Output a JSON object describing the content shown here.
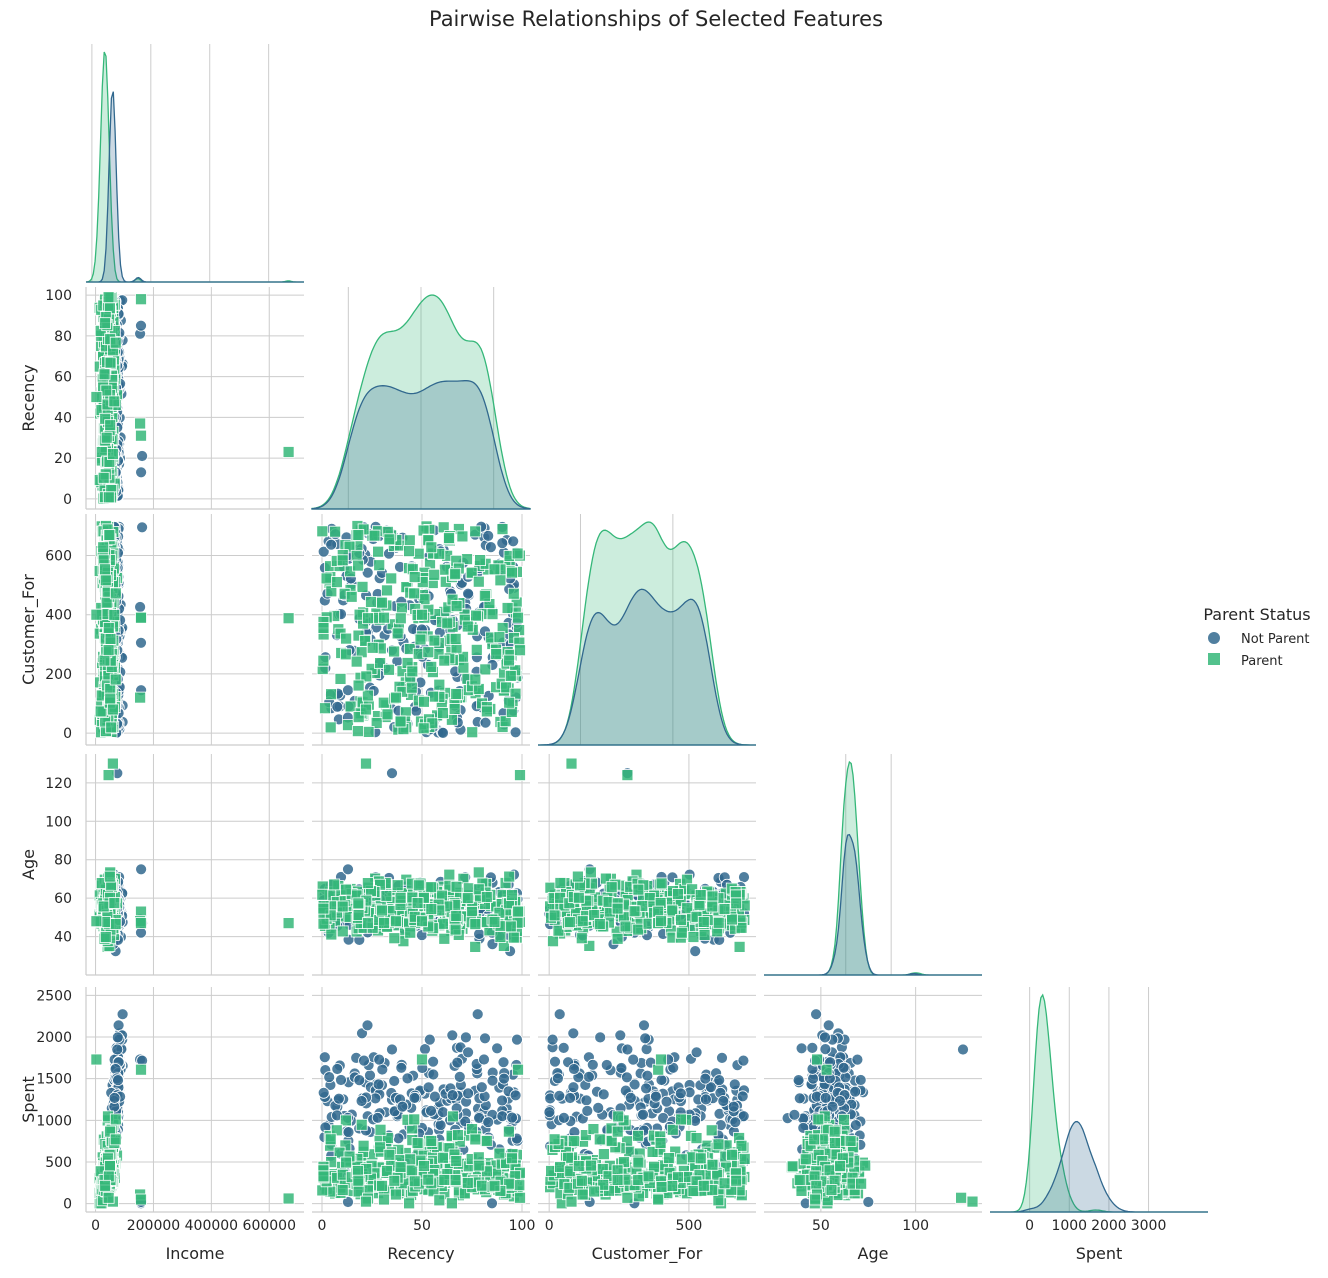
{
  "chart_data": {
    "type": "scatter",
    "title": "Pairwise Relationships of Selected Features",
    "variables": [
      "Income",
      "Recency",
      "Customer_For",
      "Age",
      "Spent"
    ],
    "ticks": {
      "Income": [
        0,
        200000,
        400000,
        600000
      ],
      "Recency": [
        0,
        50,
        100
      ],
      "Customer_For": [
        0,
        500
      ],
      "Age": [
        50,
        100
      ],
      "Spent": [
        0,
        1000,
        2000,
        3000
      ]
    },
    "y_ticks": {
      "Recency": [
        0,
        20,
        40,
        60,
        80,
        100
      ],
      "Customer_For": [
        0,
        200,
        400,
        600
      ],
      "Age": [
        40,
        60,
        80,
        100,
        120
      ],
      "Spent": [
        0,
        500,
        1000,
        1500,
        2000,
        2500
      ]
    },
    "axis_ranges": {
      "Income": [
        -33000,
        720000
      ],
      "Recency": [
        -5,
        104
      ],
      "Customer_For": [
        -40,
        740
      ],
      "Age": [
        20,
        135
      ],
      "Spent": [
        -100,
        2600
      ]
    },
    "diag_ranges": {
      "Income": [
        -20000,
        720000
      ],
      "Recency": [
        -25,
        125
      ],
      "Customer_For": [
        -230,
        950
      ],
      "Age": [
        -40,
        200
      ],
      "Spent": [
        -1000,
        4500
      ]
    },
    "legend": {
      "title": "Parent Status",
      "placement": "right",
      "entries": [
        {
          "name": "Not Parent",
          "color": "#31688e",
          "marker": "circle"
        },
        {
          "name": "Parent",
          "color": "#35b779",
          "marker": "square"
        }
      ]
    },
    "colors": {
      "Not Parent": "#31688e",
      "Parent": "#35b779"
    },
    "grid": true,
    "corner": true,
    "diagonal": "kde",
    "outliers": {
      "Not Parent": [
        {
          "Income": 153924,
          "Recency": 81,
          "Customer_For": 426,
          "Age": 49,
          "Spent": 1730
        },
        {
          "Income": 156924,
          "Recency": 85,
          "Customer_For": 305,
          "Age": 42,
          "Spent": 5
        },
        {
          "Income": 157243,
          "Recency": 13,
          "Customer_For": 145,
          "Age": 75,
          "Spent": 20
        },
        {
          "Income": 160803,
          "Recency": 21,
          "Customer_For": 695,
          "Age": 47,
          "Spent": 1717
        },
        {
          "Income": 75000,
          "Recency": 35,
          "Customer_For": 280,
          "Age": 125,
          "Spent": 1850
        }
      ],
      "Parent": [
        {
          "Income": 666666,
          "Recency": 23,
          "Customer_For": 388,
          "Age": 47,
          "Spent": 62
        },
        {
          "Income": 157146,
          "Recency": 98,
          "Customer_For": 390,
          "Age": 53,
          "Spent": 1608
        },
        {
          "Income": 153924,
          "Recency": 37,
          "Customer_For": 120,
          "Age": 48,
          "Spent": 110
        },
        {
          "Income": 156924,
          "Recency": 31,
          "Customer_For": 390,
          "Age": 47,
          "Spent": 50
        },
        {
          "Income": 60000,
          "Recency": 22,
          "Customer_For": 80,
          "Age": 130,
          "Spent": 25
        },
        {
          "Income": 45000,
          "Recency": 99,
          "Customer_For": 280,
          "Age": 124,
          "Spent": 70
        },
        {
          "Income": 3000,
          "Recency": 50,
          "Customer_For": 400,
          "Age": 48,
          "Spent": 1730
        }
      ]
    },
    "bulk_distribution": {
      "Not Parent": {
        "Income": {
          "min": 1000,
          "max": 110000,
          "mean": 70000
        },
        "Recency": {
          "min": 0,
          "max": 99
        },
        "Customer_For": {
          "min": 0,
          "max": 700
        },
        "Age": {
          "min": 28,
          "max": 84
        },
        "Spent": {
          "min": 5,
          "max": 2525,
          "mean": 1100
        }
      },
      "Parent": {
        "Income": {
          "min": 1000,
          "max": 100000,
          "mean": 45000
        },
        "Recency": {
          "min": 0,
          "max": 99
        },
        "Customer_For": {
          "min": 0,
          "max": 700
        },
        "Age": {
          "min": 28,
          "max": 79
        },
        "Spent": {
          "min": 5,
          "max": 2000,
          "mean": 300
        }
      }
    }
  }
}
